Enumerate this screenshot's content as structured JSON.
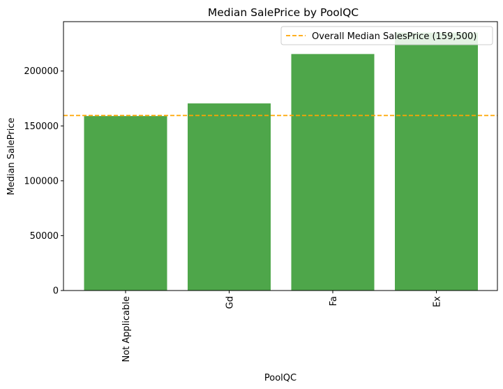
{
  "chart_data": {
    "type": "bar",
    "title": "Median SalePrice by PoolQC",
    "xlabel": "PoolQC",
    "ylabel": "Median SalePrice",
    "categories": [
      "Not Applicable",
      "Gd",
      "Fa",
      "Ex"
    ],
    "values": [
      159000,
      170500,
      215500,
      235000
    ],
    "ylim": [
      0,
      245000
    ],
    "yticks": [
      0,
      50000,
      100000,
      150000,
      200000
    ],
    "ytick_labels": [
      "0",
      "50000",
      "100000",
      "150000",
      "200000"
    ],
    "bar_color": "#4ea64a",
    "reference_line": {
      "value": 159500,
      "label": "Overall Median SalesPrice (159,500)",
      "color": "#ffa500",
      "style": "dashed"
    },
    "legend": {
      "position": "top-right"
    },
    "grid": false
  }
}
